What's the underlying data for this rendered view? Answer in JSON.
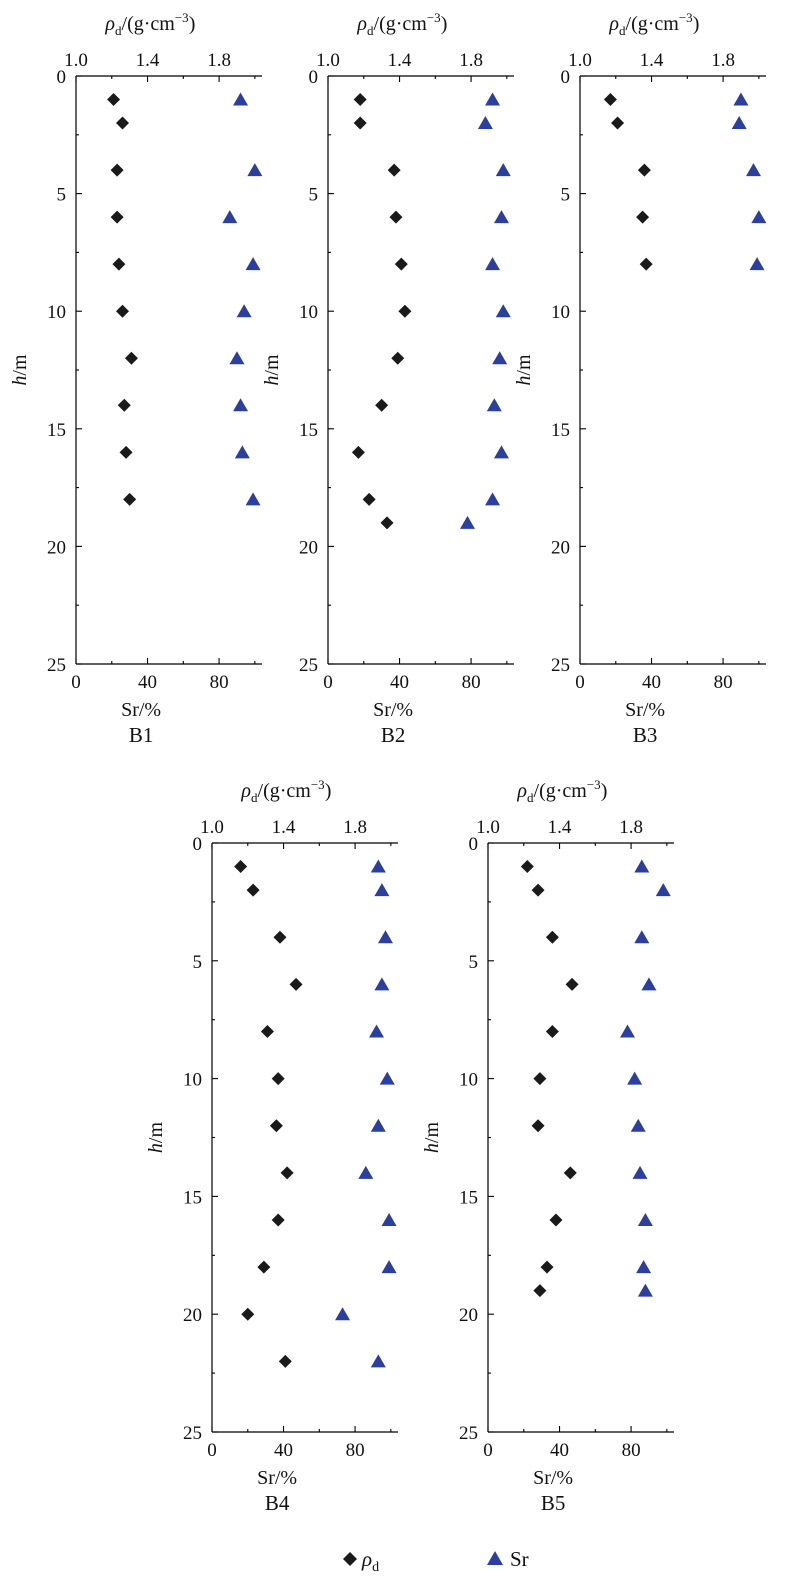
{
  "common": {
    "top_axis_label_symbol": "ρ",
    "top_axis_label_sub": "d",
    "top_axis_label_rest": "/(g·cm",
    "top_axis_label_sup": "−3",
    "top_axis_label_close": ")",
    "bottom_axis_label": "Sr/%",
    "y_axis_label_italic": "h",
    "y_axis_label_rest": "/m"
  },
  "legend": {
    "rho_symbol": "ρ",
    "rho_sub": "d",
    "sr_label": "Sr"
  },
  "colors": {
    "rho_marker": "#1a1a1a",
    "sr_marker": "#2b3f9e",
    "axis": "#000000"
  },
  "chart_data": [
    {
      "type": "scatter",
      "panel": "B1",
      "ylim": [
        0,
        25
      ],
      "yticks": [
        0,
        5,
        10,
        15,
        20,
        25
      ],
      "top_axis": {
        "label": "ρd/(g·cm−3)",
        "ticks": [
          "1.0",
          "1.4",
          "1.8"
        ],
        "tick_values": [
          1.0,
          1.4,
          1.8
        ]
      },
      "bottom_axis": {
        "label": "Sr/%",
        "ticks": [
          "0",
          "40",
          "80"
        ],
        "tick_values": [
          0,
          40,
          80
        ]
      },
      "series": [
        {
          "name": "ρd",
          "marker": "diamond",
          "h": [
            1,
            2,
            4,
            6,
            8,
            10,
            12,
            14,
            16,
            18
          ],
          "values": [
            1.21,
            1.26,
            1.23,
            1.23,
            1.24,
            1.26,
            1.31,
            1.27,
            1.28,
            1.3
          ]
        },
        {
          "name": "Sr",
          "marker": "triangle",
          "h": [
            1,
            4,
            6,
            8,
            10,
            12,
            14,
            16,
            18
          ],
          "values": [
            92,
            100,
            86,
            99,
            94,
            90,
            92,
            93,
            99
          ]
        }
      ]
    },
    {
      "type": "scatter",
      "panel": "B2",
      "ylim": [
        0,
        25
      ],
      "yticks": [
        0,
        5,
        10,
        15,
        20,
        25
      ],
      "top_axis": {
        "label": "ρd/(g·cm−3)",
        "ticks": [
          "1.0",
          "1.4",
          "1.8"
        ],
        "tick_values": [
          1.0,
          1.4,
          1.8
        ]
      },
      "bottom_axis": {
        "label": "Sr/%",
        "ticks": [
          "0",
          "40",
          "80"
        ],
        "tick_values": [
          0,
          40,
          80
        ]
      },
      "series": [
        {
          "name": "ρd",
          "marker": "diamond",
          "h": [
            1,
            2,
            4,
            6,
            8,
            10,
            12,
            14,
            16,
            18,
            19
          ],
          "values": [
            1.18,
            1.18,
            1.37,
            1.38,
            1.41,
            1.43,
            1.39,
            1.3,
            1.17,
            1.23,
            1.33
          ]
        },
        {
          "name": "Sr",
          "marker": "triangle",
          "h": [
            1,
            2,
            4,
            6,
            8,
            10,
            12,
            14,
            16,
            18,
            19
          ],
          "values": [
            92,
            88,
            98,
            97,
            92,
            98,
            96,
            93,
            97,
            92,
            78
          ]
        }
      ]
    },
    {
      "type": "scatter",
      "panel": "B3",
      "ylim": [
        0,
        25
      ],
      "yticks": [
        0,
        5,
        10,
        15,
        20,
        25
      ],
      "top_axis": {
        "label": "ρd/(g·cm−3)",
        "ticks": [
          "1.0",
          "1.4",
          "1.8"
        ],
        "tick_values": [
          1.0,
          1.4,
          1.8
        ]
      },
      "bottom_axis": {
        "label": "Sr/%",
        "ticks": [
          "0",
          "40",
          "80"
        ],
        "tick_values": [
          0,
          40,
          80
        ]
      },
      "series": [
        {
          "name": "ρd",
          "marker": "diamond",
          "h": [
            1,
            2,
            4,
            6,
            8
          ],
          "values": [
            1.17,
            1.21,
            1.36,
            1.35,
            1.37
          ]
        },
        {
          "name": "Sr",
          "marker": "triangle",
          "h": [
            1,
            2,
            4,
            6,
            8
          ],
          "values": [
            90,
            89,
            97,
            100,
            99
          ]
        }
      ]
    },
    {
      "type": "scatter",
      "panel": "B4",
      "ylim": [
        0,
        25
      ],
      "yticks": [
        0,
        5,
        10,
        15,
        20,
        25
      ],
      "top_axis": {
        "label": "ρd/(g·cm−3)",
        "ticks": [
          "1.0",
          "1.4",
          "1.8"
        ],
        "tick_values": [
          1.0,
          1.4,
          1.8
        ]
      },
      "bottom_axis": {
        "label": "Sr/%",
        "ticks": [
          "0",
          "40",
          "80"
        ],
        "tick_values": [
          0,
          40,
          80
        ]
      },
      "series": [
        {
          "name": "ρd",
          "marker": "diamond",
          "h": [
            1,
            2,
            4,
            6,
            8,
            10,
            12,
            14,
            16,
            18,
            20,
            22
          ],
          "values": [
            1.16,
            1.23,
            1.38,
            1.47,
            1.31,
            1.37,
            1.36,
            1.42,
            1.37,
            1.29,
            1.2,
            1.41
          ]
        },
        {
          "name": "Sr",
          "marker": "triangle",
          "h": [
            1,
            2,
            4,
            6,
            8,
            10,
            12,
            14,
            16,
            18,
            20,
            22
          ],
          "values": [
            93,
            95,
            97,
            95,
            92,
            98,
            93,
            86,
            99,
            99,
            73,
            93
          ]
        }
      ]
    },
    {
      "type": "scatter",
      "panel": "B5",
      "ylim": [
        0,
        25
      ],
      "yticks": [
        0,
        5,
        10,
        15,
        20,
        25
      ],
      "top_axis": {
        "label": "ρd/(g·cm−3)",
        "ticks": [
          "1.0",
          "1.4",
          "1.8"
        ],
        "tick_values": [
          1.0,
          1.4,
          1.8
        ]
      },
      "bottom_axis": {
        "label": "Sr/%",
        "ticks": [
          "0",
          "40",
          "80"
        ],
        "tick_values": [
          0,
          40,
          80
        ]
      },
      "series": [
        {
          "name": "ρd",
          "marker": "diamond",
          "h": [
            1,
            2,
            4,
            6,
            8,
            10,
            12,
            14,
            16,
            18,
            19
          ],
          "values": [
            1.22,
            1.28,
            1.36,
            1.47,
            1.36,
            1.29,
            1.28,
            1.46,
            1.38,
            1.33,
            1.29
          ]
        },
        {
          "name": "Sr",
          "marker": "triangle",
          "h": [
            1,
            2,
            4,
            6,
            8,
            10,
            12,
            14,
            16,
            18,
            19
          ],
          "values": [
            86,
            98,
            86,
            90,
            78,
            82,
            84,
            85,
            88,
            87,
            88
          ]
        }
      ]
    }
  ]
}
